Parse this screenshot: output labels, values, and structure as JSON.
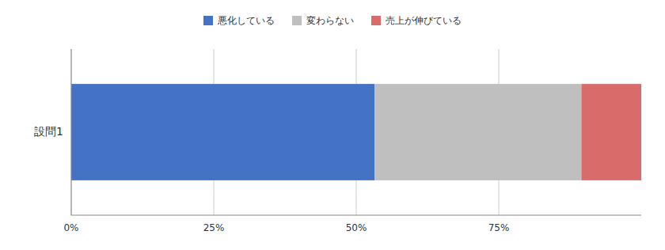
{
  "chart_data": {
    "type": "bar",
    "orientation": "horizontal",
    "stacked": true,
    "categories": [
      "設問1"
    ],
    "series": [
      {
        "name": "悪化している",
        "color": "#4472C4",
        "values": [
          53.2
        ]
      },
      {
        "name": "変わらない",
        "color": "#BFBFBF",
        "values": [
          36.3
        ]
      },
      {
        "name": "売上が伸びている",
        "color": "#D96B6B",
        "values": [
          10.5
        ]
      }
    ],
    "xlim": [
      0,
      100
    ],
    "xticks": [
      {
        "value": 0,
        "label": "0%"
      },
      {
        "value": 25,
        "label": "25%"
      },
      {
        "value": 50,
        "label": "50%"
      },
      {
        "value": 75,
        "label": "75%"
      }
    ],
    "grid": true,
    "legend": "top"
  }
}
